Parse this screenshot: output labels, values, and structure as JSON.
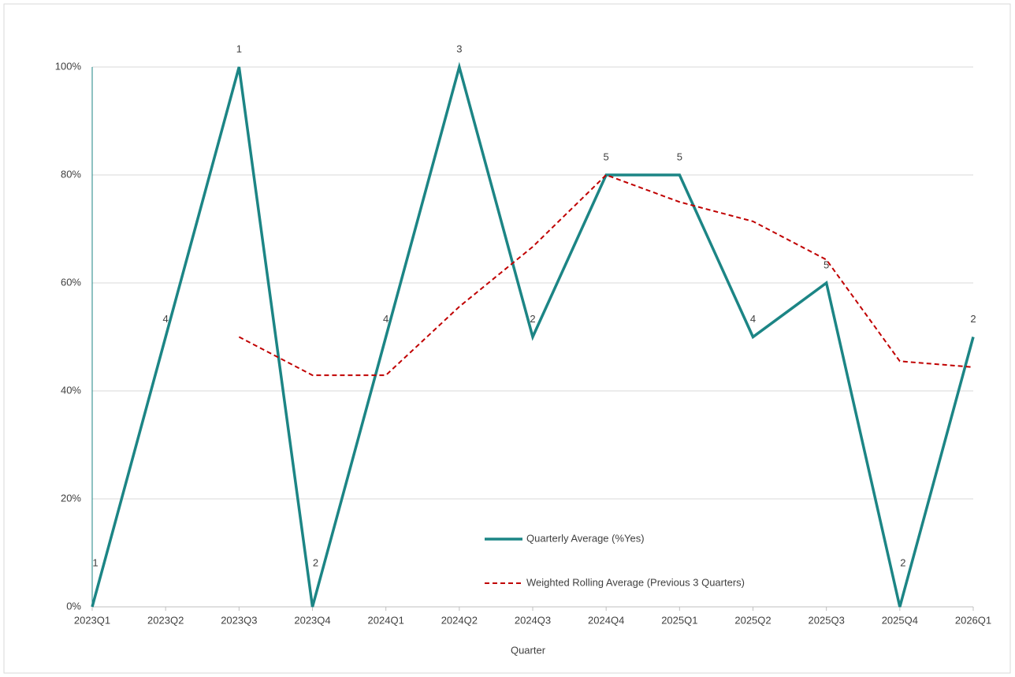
{
  "chart_data": {
    "type": "line",
    "x_label": "Quarter",
    "categories": [
      "2023Q1",
      "2023Q2",
      "2023Q3",
      "2023Q4",
      "2024Q1",
      "2024Q2",
      "2024Q3",
      "2024Q4",
      "2025Q1",
      "2025Q2",
      "2025Q3",
      "2025Q4",
      "2026Q1"
    ],
    "series": [
      {
        "name": "Quarterly Average (%Yes)",
        "color": "#1c8585",
        "dash": "solid",
        "values": [
          0,
          50,
          100,
          0,
          50,
          100,
          50,
          80,
          80,
          50,
          60,
          0,
          50
        ],
        "count_labels": [
          "1",
          "4",
          "1",
          "2",
          "4",
          "3",
          "2",
          "5",
          "5",
          "4",
          "5",
          "2",
          "2"
        ]
      },
      {
        "name": "Weighted Rolling Average (Previous 3 Quarters)",
        "color": "#c00000",
        "dash": "dashed",
        "values": [
          null,
          null,
          50,
          42.9,
          42.9,
          55.6,
          66.7,
          80,
          75,
          71.4,
          64.3,
          45.5,
          44.4
        ]
      }
    ],
    "ylim": [
      0,
      100
    ],
    "yticks": [
      {
        "value": 0,
        "label": "0%"
      },
      {
        "value": 20,
        "label": "20%"
      },
      {
        "value": 40,
        "label": "40%"
      },
      {
        "value": 60,
        "label": "60%"
      },
      {
        "value": 80,
        "label": "80%"
      },
      {
        "value": 100,
        "label": "100%"
      }
    ],
    "grid": true
  }
}
